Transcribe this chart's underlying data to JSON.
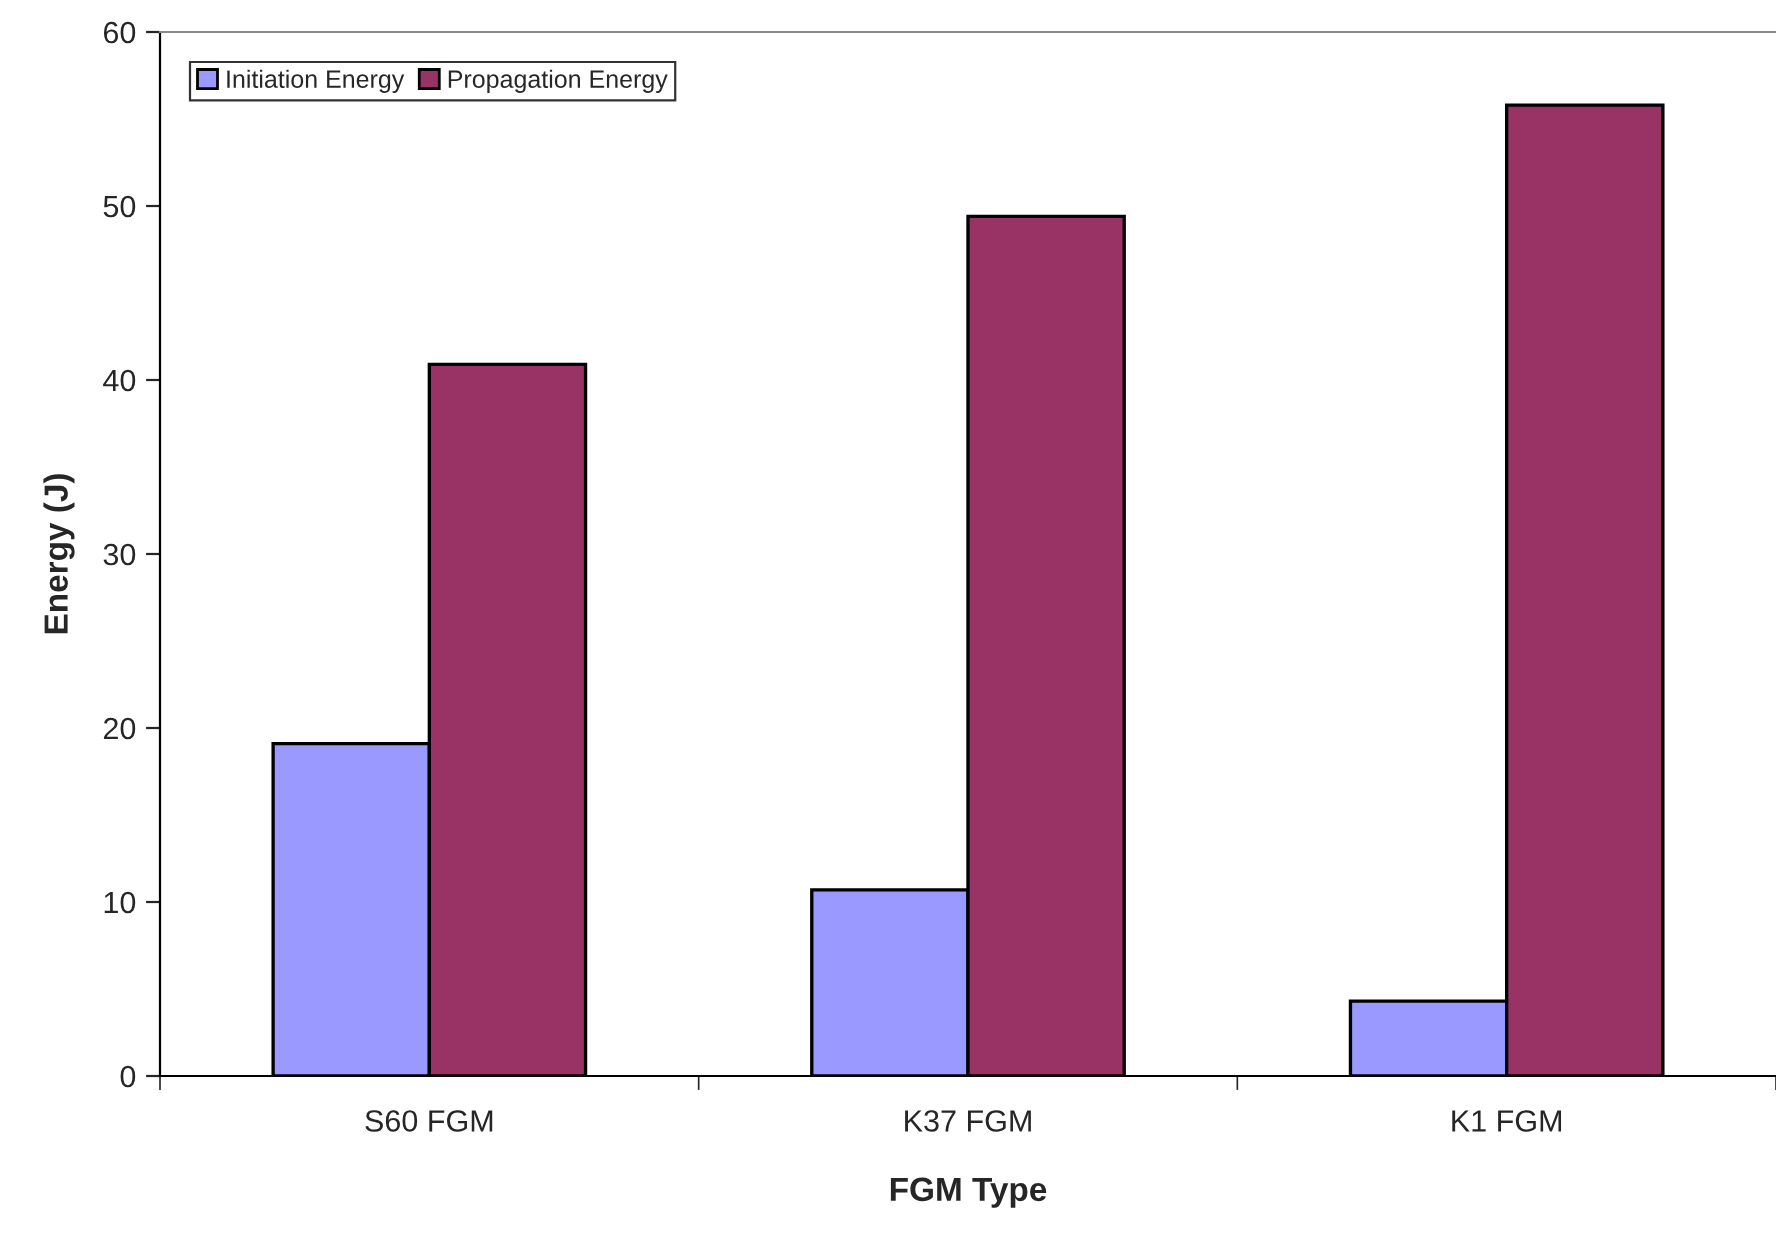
{
  "chart_data": {
    "type": "bar",
    "xlabel": "FGM Type",
    "ylabel": "Energy (J)",
    "categories": [
      "S60 FGM",
      "K37 FGM",
      "K1 FGM"
    ],
    "series": [
      {
        "name": "Initiation Energy",
        "color": "#9999ff",
        "values": [
          19.1,
          10.7,
          4.3
        ]
      },
      {
        "name": "Propagation Energy",
        "color": "#993366",
        "values": [
          40.9,
          49.4,
          55.8
        ]
      }
    ],
    "ylim": [
      0,
      60
    ],
    "yticks": [
      0,
      10,
      20,
      30,
      40,
      50,
      60
    ],
    "grid": false,
    "legend": "top left"
  }
}
